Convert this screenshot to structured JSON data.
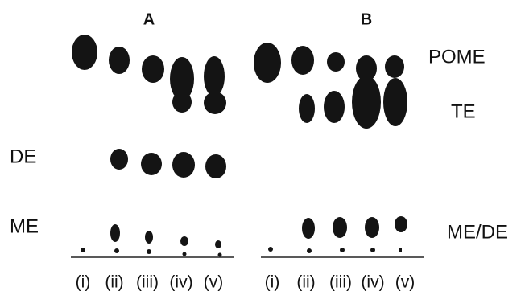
{
  "panels": [
    {
      "label": "A",
      "lanes": [
        "(i)",
        "(ii)",
        "(iii)",
        "(iv)",
        "(v)"
      ]
    },
    {
      "label": "B",
      "lanes": [
        "(i)",
        "(ii)",
        "(iii)",
        "(iv)",
        "(v)"
      ]
    }
  ],
  "spot_labels": {
    "pome": "POME",
    "te": "TE",
    "de": "DE",
    "me": "ME",
    "me_de": "ME/DE"
  }
}
